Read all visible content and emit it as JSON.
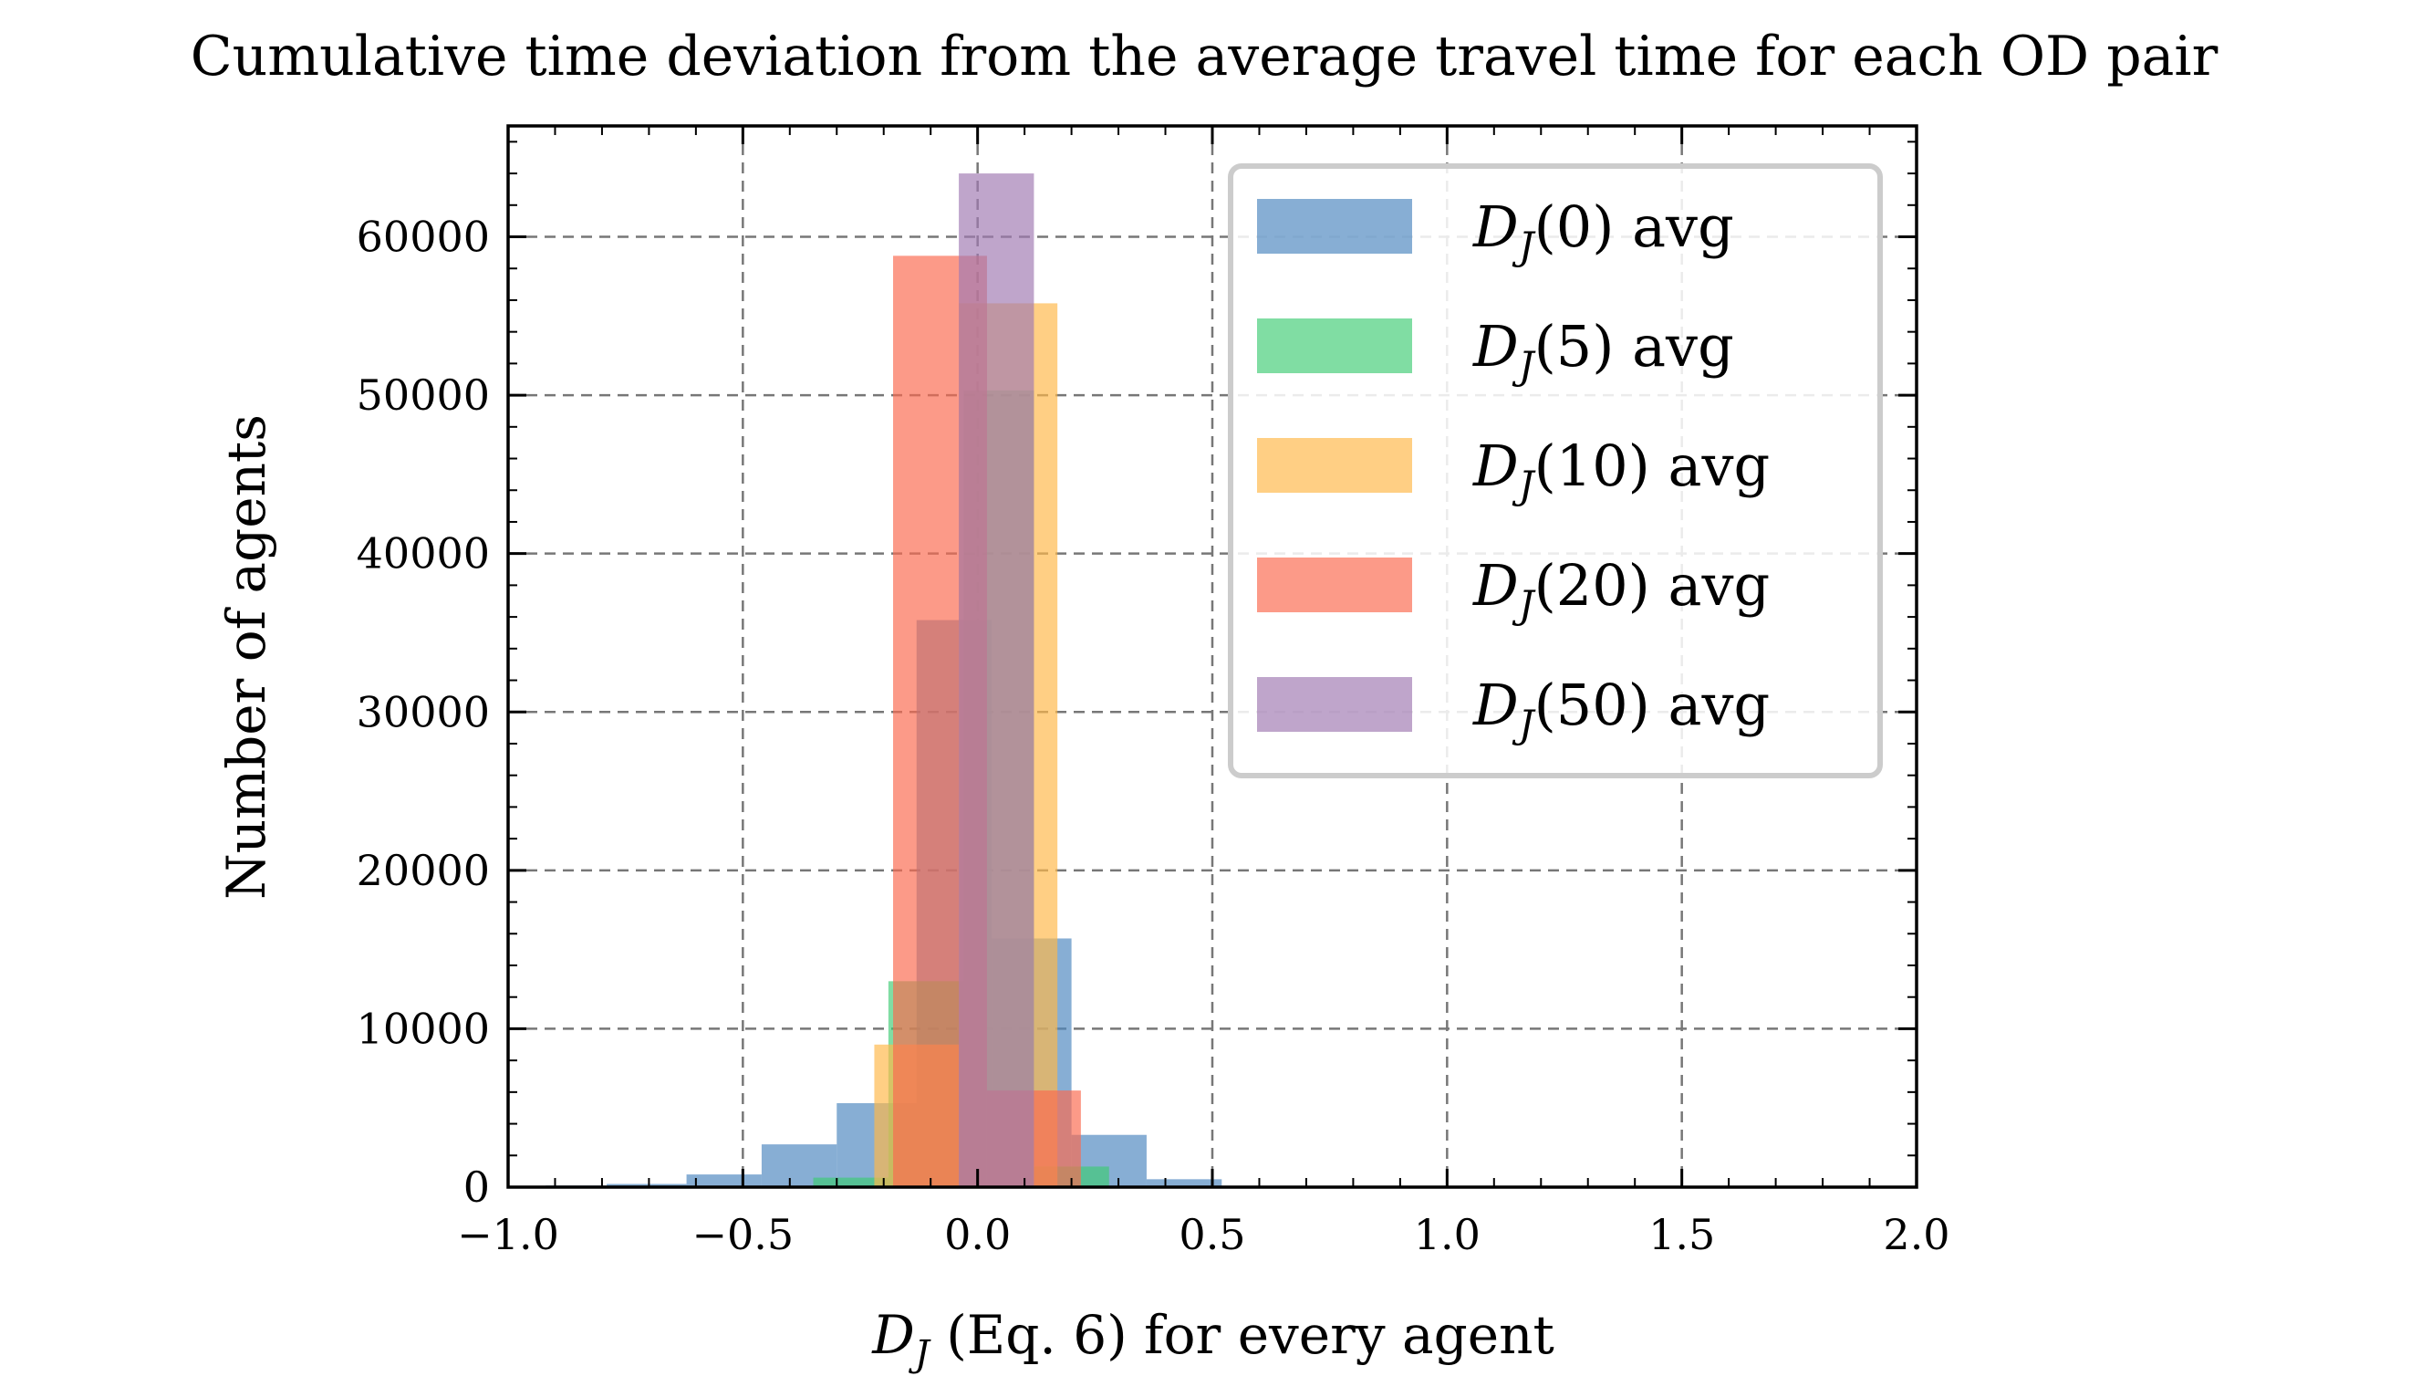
{
  "chart_data": {
    "type": "bar",
    "subtype": "overlapping-histogram",
    "title": "Cumulative time deviation from the average travel time for each OD pair",
    "xlabel_main": "D",
    "xlabel_sub": "J",
    "xlabel_rest": " (Eq. 6) for every agent",
    "ylabel": "Number of agents",
    "xlim": [
      -1.0,
      2.0
    ],
    "ylim": [
      0,
      67000
    ],
    "xticks": [
      -1.0,
      -0.5,
      0.0,
      0.5,
      1.0,
      1.5,
      2.0
    ],
    "xtick_labels": [
      "−1.0",
      "−0.5",
      "0.0",
      "0.5",
      "1.0",
      "1.5",
      "2.0"
    ],
    "yticks": [
      0,
      10000,
      20000,
      30000,
      40000,
      50000,
      60000
    ],
    "ytick_labels": [
      "0",
      "10000",
      "20000",
      "30000",
      "40000",
      "50000",
      "60000"
    ],
    "grid": true,
    "legend_position": "top-right",
    "series": [
      {
        "name": "D_J(0) avg",
        "legend_main": "D",
        "legend_sub": "J",
        "legend_rest": "(0) avg",
        "color": "#4e87c0",
        "opacity": 0.68,
        "bins": [
          {
            "x0": -0.92,
            "x1": -0.79,
            "value": 100
          },
          {
            "x0": -0.79,
            "x1": -0.62,
            "value": 200
          },
          {
            "x0": -0.62,
            "x1": -0.46,
            "value": 800
          },
          {
            "x0": -0.46,
            "x1": -0.3,
            "value": 2700
          },
          {
            "x0": -0.3,
            "x1": -0.13,
            "value": 5300
          },
          {
            "x0": -0.13,
            "x1": 0.03,
            "value": 35800
          },
          {
            "x0": 0.03,
            "x1": 0.2,
            "value": 15700
          },
          {
            "x0": 0.2,
            "x1": 0.36,
            "value": 3300
          },
          {
            "x0": 0.36,
            "x1": 0.52,
            "value": 500
          },
          {
            "x0": 0.52,
            "x1": 0.69,
            "value": 50
          }
        ]
      },
      {
        "name": "D_J(5) avg",
        "legend_main": "D",
        "legend_sub": "J",
        "legend_rest": "(5) avg",
        "color": "#3ccb72",
        "opacity": 0.65,
        "bins": [
          {
            "x0": -0.35,
            "x1": -0.19,
            "value": 600
          },
          {
            "x0": -0.19,
            "x1": -0.03,
            "value": 13000
          },
          {
            "x0": -0.03,
            "x1": 0.12,
            "value": 50300
          },
          {
            "x0": 0.12,
            "x1": 0.28,
            "value": 1300
          }
        ]
      },
      {
        "name": "D_J(10) avg",
        "legend_main": "D",
        "legend_sub": "J",
        "legend_rest": "(10) avg",
        "color": "#ffb84a",
        "opacity": 0.68,
        "bins": [
          {
            "x0": -0.22,
            "x1": -0.04,
            "value": 9000
          },
          {
            "x0": -0.04,
            "x1": 0.17,
            "value": 55800
          }
        ]
      },
      {
        "name": "D_J(20) avg",
        "legend_main": "D",
        "legend_sub": "J",
        "legend_rest": "(20) avg",
        "color": "#fb6a4f",
        "opacity": 0.68,
        "bins": [
          {
            "x0": -0.18,
            "x1": 0.02,
            "value": 58800
          },
          {
            "x0": 0.02,
            "x1": 0.22,
            "value": 6100
          }
        ]
      },
      {
        "name": "D_J(50) avg",
        "legend_main": "D",
        "legend_sub": "J",
        "legend_rest": "(50) avg",
        "color": "#a07ab3",
        "opacity": 0.68,
        "bins": [
          {
            "x0": -0.04,
            "x1": 0.12,
            "value": 64000
          }
        ]
      }
    ]
  }
}
